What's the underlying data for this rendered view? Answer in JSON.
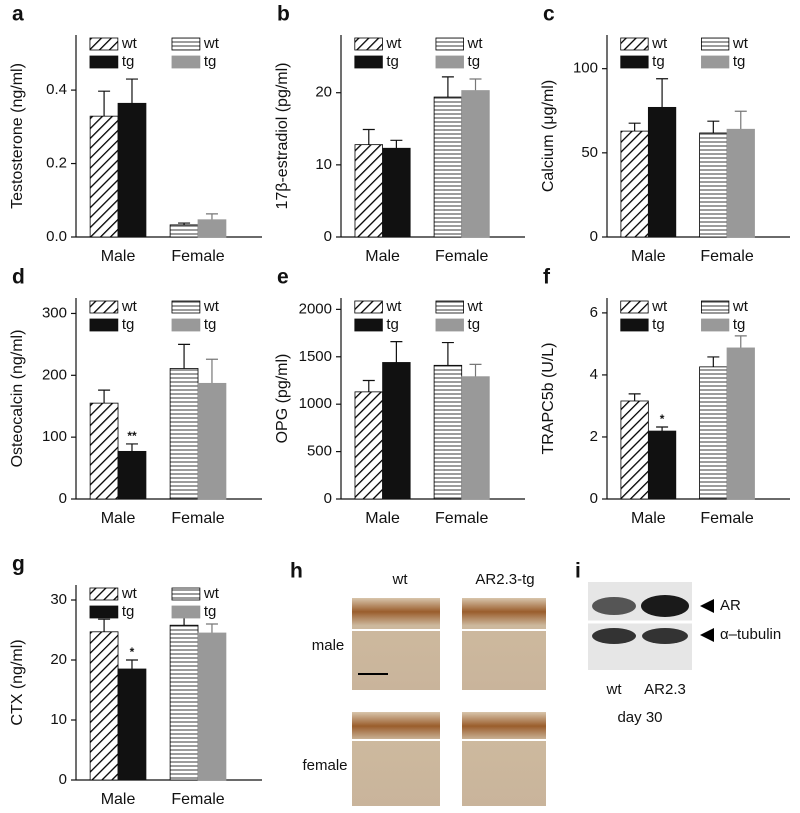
{
  "chart_data": [
    {
      "type": "bar",
      "panel": "a",
      "y_label": "Testosterone (ng/ml)",
      "categories": [
        "Male",
        "Female"
      ],
      "ylim": [
        0,
        0.55
      ],
      "yticks": [
        {
          "value": 0,
          "label": "0.0"
        },
        0.2,
        0.4
      ],
      "series": [
        {
          "name": "wt",
          "color": "#000000",
          "pattern": "diagonal",
          "values": [
            0.329,
            null
          ],
          "errors": [
            0.068,
            null
          ]
        },
        {
          "name": "tg",
          "color": "#111111",
          "pattern": "solid",
          "values": [
            0.364,
            null
          ],
          "errors": [
            0.066,
            null
          ]
        },
        {
          "name": "wt",
          "color": "#000000",
          "pattern": "horizontal",
          "values": [
            null,
            0.033
          ],
          "errors": [
            null,
            0.005
          ]
        },
        {
          "name": "tg",
          "color": "#999999",
          "pattern": "solid",
          "values": [
            null,
            0.047
          ],
          "errors": [
            null,
            0.016
          ]
        }
      ]
    },
    {
      "type": "bar",
      "panel": "b",
      "y_label": "17β-estradiol (pg/ml)",
      "categories": [
        "Male",
        "Female"
      ],
      "ylim": [
        0,
        28
      ],
      "yticks": [
        0,
        10,
        20
      ],
      "series": [
        {
          "name": "wt",
          "color": "#000000",
          "pattern": "diagonal",
          "values": [
            12.8,
            null
          ],
          "errors": [
            2.1,
            null
          ]
        },
        {
          "name": "tg",
          "color": "#111111",
          "pattern": "solid",
          "values": [
            12.3,
            null
          ],
          "errors": [
            1.1,
            null
          ]
        },
        {
          "name": "wt",
          "color": "#000000",
          "pattern": "horizontal",
          "values": [
            null,
            19.4
          ],
          "errors": [
            null,
            2.8
          ]
        },
        {
          "name": "tg",
          "color": "#999999",
          "pattern": "solid",
          "values": [
            null,
            20.3
          ],
          "errors": [
            null,
            1.6
          ]
        }
      ]
    },
    {
      "type": "bar",
      "panel": "c",
      "y_label": "Calcium (μg/ml)",
      "categories": [
        "Male",
        "Female"
      ],
      "ylim": [
        0,
        120
      ],
      "yticks": [
        0,
        50,
        100
      ],
      "series": [
        {
          "name": "wt",
          "color": "#000000",
          "pattern": "diagonal",
          "values": [
            62.9,
            null
          ],
          "errors": [
            4.7,
            null
          ]
        },
        {
          "name": "tg",
          "color": "#111111",
          "pattern": "solid",
          "values": [
            77,
            null
          ],
          "errors": [
            17,
            null
          ]
        },
        {
          "name": "wt",
          "color": "#000000",
          "pattern": "horizontal",
          "values": [
            null,
            61.8
          ],
          "errors": [
            null,
            7
          ]
        },
        {
          "name": "tg",
          "color": "#999999",
          "pattern": "solid",
          "values": [
            null,
            64
          ],
          "errors": [
            null,
            10.7
          ]
        }
      ]
    },
    {
      "type": "bar",
      "panel": "d",
      "y_label": "Osteocalcin (ng/ml)",
      "categories": [
        "Male",
        "Female"
      ],
      "ylim": [
        0,
        325
      ],
      "yticks": [
        0,
        100,
        200,
        300
      ],
      "series": [
        {
          "name": "wt",
          "color": "#000000",
          "pattern": "diagonal",
          "values": [
            155,
            null
          ],
          "errors": [
            21,
            null
          ]
        },
        {
          "name": "tg",
          "color": "#111111",
          "pattern": "solid",
          "values": [
            77,
            null
          ],
          "errors": [
            12,
            null
          ],
          "significance": [
            "**",
            null
          ]
        },
        {
          "name": "wt",
          "color": "#000000",
          "pattern": "horizontal",
          "values": [
            null,
            211
          ],
          "errors": [
            null,
            39
          ]
        },
        {
          "name": "tg",
          "color": "#999999",
          "pattern": "solid",
          "values": [
            null,
            187
          ],
          "errors": [
            null,
            39
          ]
        }
      ]
    },
    {
      "type": "bar",
      "panel": "e",
      "y_label": "OPG (pg/ml)",
      "categories": [
        "Male",
        "Female"
      ],
      "ylim": [
        0,
        2120
      ],
      "yticks": [
        0,
        500,
        1000,
        1500,
        2000
      ],
      "series": [
        {
          "name": "wt",
          "color": "#000000",
          "pattern": "diagonal",
          "values": [
            1130,
            null
          ],
          "errors": [
            120,
            null
          ]
        },
        {
          "name": "tg",
          "color": "#111111",
          "pattern": "solid",
          "values": [
            1440,
            null
          ],
          "errors": [
            220,
            null
          ]
        },
        {
          "name": "wt",
          "color": "#000000",
          "pattern": "horizontal",
          "values": [
            null,
            1410
          ],
          "errors": [
            null,
            240
          ]
        },
        {
          "name": "tg",
          "color": "#999999",
          "pattern": "solid",
          "values": [
            null,
            1290
          ],
          "errors": [
            null,
            130
          ]
        }
      ]
    },
    {
      "type": "bar",
      "panel": "f",
      "y_label": "TRAPC5b (U/L)",
      "categories": [
        "Male",
        "Female"
      ],
      "ylim": [
        0,
        6.48
      ],
      "yticks": [
        0,
        2,
        4,
        6
      ],
      "series": [
        {
          "name": "wt",
          "color": "#000000",
          "pattern": "diagonal",
          "values": [
            3.16,
            null
          ],
          "errors": [
            0.23,
            null
          ]
        },
        {
          "name": "tg",
          "color": "#111111",
          "pattern": "solid",
          "values": [
            2.19,
            null
          ],
          "errors": [
            0.13,
            null
          ],
          "significance": [
            "*",
            null
          ]
        },
        {
          "name": "wt",
          "color": "#000000",
          "pattern": "horizontal",
          "values": [
            null,
            4.26
          ],
          "errors": [
            null,
            0.32
          ]
        },
        {
          "name": "tg",
          "color": "#999999",
          "pattern": "solid",
          "values": [
            null,
            4.87
          ],
          "errors": [
            null,
            0.39
          ]
        }
      ]
    },
    {
      "type": "bar",
      "panel": "g",
      "y_label": "CTX (ng/ml)",
      "categories": [
        "Male",
        "Female"
      ],
      "ylim": [
        0,
        32.5
      ],
      "yticks": [
        0,
        10,
        20,
        30
      ],
      "series": [
        {
          "name": "wt",
          "color": "#000000",
          "pattern": "diagonal",
          "values": [
            24.7,
            null
          ],
          "errors": [
            2.1,
            null
          ]
        },
        {
          "name": "tg",
          "color": "#111111",
          "pattern": "solid",
          "values": [
            18.5,
            null
          ],
          "errors": [
            1.5,
            null
          ],
          "significance": [
            "*",
            null
          ]
        },
        {
          "name": "wt",
          "color": "#000000",
          "pattern": "horizontal",
          "values": [
            null,
            25.8
          ],
          "errors": [
            null,
            2.2
          ]
        },
        {
          "name": "tg",
          "color": "#999999",
          "pattern": "solid",
          "values": [
            null,
            24.5
          ],
          "errors": [
            null,
            1.5
          ]
        }
      ]
    }
  ],
  "micrographs": {
    "panel": "h",
    "columns": [
      "wt",
      "AR2.3-tg"
    ],
    "rows": [
      "male",
      "female"
    ]
  },
  "blot": {
    "panel": "i",
    "bands": [
      "AR",
      "α–tubulin"
    ],
    "lanes": [
      "wt",
      "AR2.3"
    ],
    "caption": "day 30"
  }
}
